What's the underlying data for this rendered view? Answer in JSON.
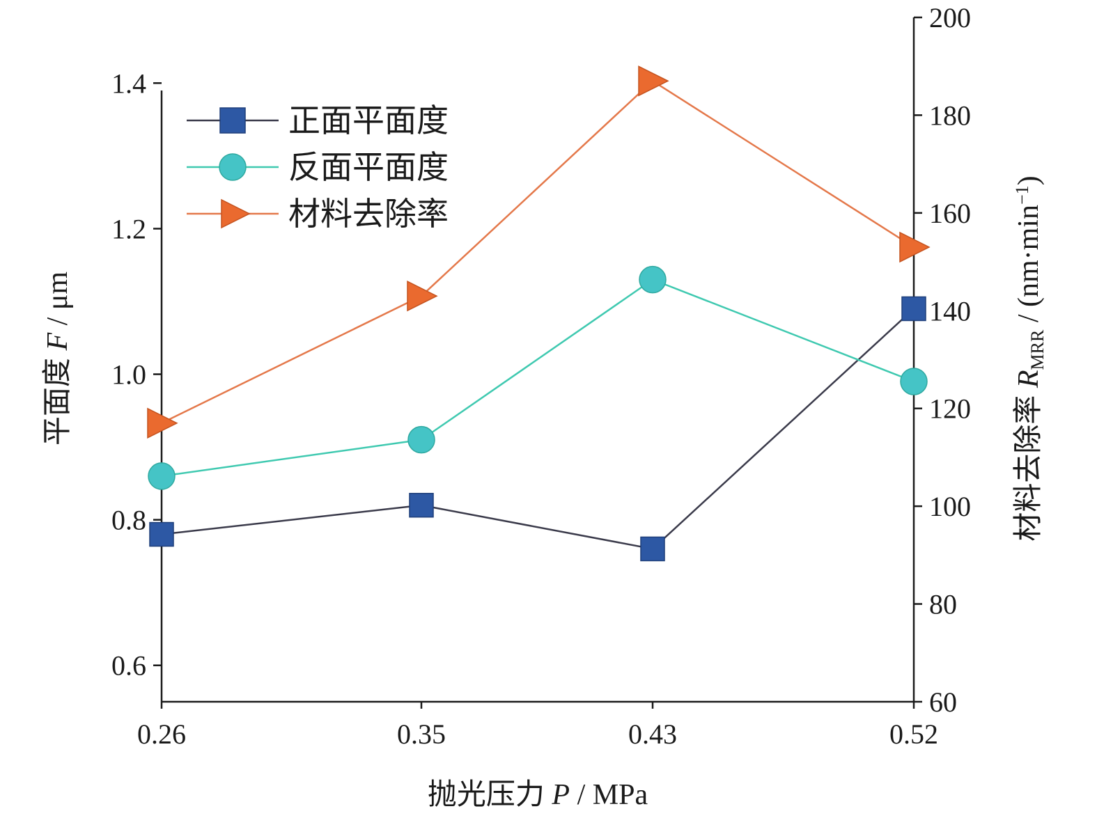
{
  "chart_data": {
    "type": "line",
    "x": [
      0.26,
      0.35,
      0.43,
      0.52
    ],
    "x_tick_labels": [
      "0.26",
      "0.35",
      "0.43",
      "0.52"
    ],
    "xlabel": {
      "main": "抛光压力 ",
      "var": "P",
      "unit": " / MPa"
    },
    "ylabel_left": {
      "main": "平面度 ",
      "var": "F",
      "unit": " / μm"
    },
    "ylabel_right": {
      "main": "材料去除率 ",
      "var": "R",
      "sub": "MRR",
      "unit": " / (nm·min",
      "sup": "−1",
      "close": ")"
    },
    "ylim_left": [
      0.55,
      1.43
    ],
    "yticks_left": [
      0.6,
      0.8,
      1.0,
      1.2,
      1.4
    ],
    "ytick_labels_left": [
      "0.6",
      "0.8",
      "1.0",
      "1.2",
      "1.4"
    ],
    "ylim_right": [
      60,
      200
    ],
    "yticks_right": [
      60,
      80,
      100,
      120,
      140,
      160,
      180,
      200
    ],
    "ytick_labels_right": [
      "60",
      "80",
      "100",
      "120",
      "140",
      "160",
      "180",
      "200"
    ],
    "grid": false,
    "legend_position": "top-left",
    "series": [
      {
        "name": "正面平面度",
        "axis": "left",
        "marker": "square",
        "marker_color": "#2d58a4",
        "line_color": "#3a3a4a",
        "values": [
          0.78,
          0.82,
          0.76,
          1.09
        ]
      },
      {
        "name": "反面平面度",
        "axis": "left",
        "marker": "circle",
        "marker_color": "#45c4c6",
        "line_color": "#3fc9b0",
        "values": [
          0.86,
          0.91,
          1.13,
          0.99
        ]
      },
      {
        "name": "材料去除率",
        "axis": "right",
        "marker": "triangle-right",
        "marker_color": "#ea6a2f",
        "line_color": "#e4784a",
        "values": [
          117,
          143,
          187,
          153
        ]
      }
    ]
  }
}
